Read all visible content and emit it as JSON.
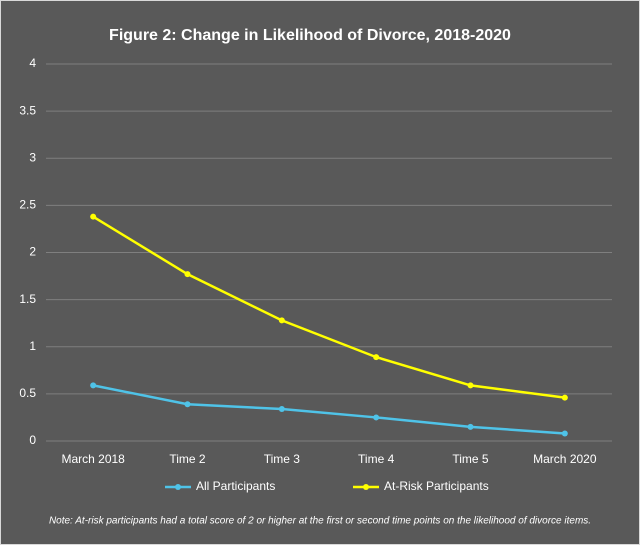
{
  "chart_data": {
    "type": "line",
    "title": "Figure 2: Change in Likelihood of Divorce, 2018-2020",
    "categories": [
      "March 2018",
      "Time 2",
      "Time 3",
      "Time 4",
      "Time 5",
      "March 2020"
    ],
    "series": [
      {
        "name": "All Participants",
        "color": "#4fc3e8",
        "values": [
          0.59,
          0.39,
          0.34,
          0.25,
          0.15,
          0.08
        ]
      },
      {
        "name": "At-Risk Participants",
        "color": "#ffff00",
        "values": [
          2.38,
          1.77,
          1.28,
          0.89,
          0.59,
          0.46
        ]
      }
    ],
    "ylim": [
      0,
      4
    ],
    "yticks": [
      0,
      0.5,
      1,
      1.5,
      2,
      2.5,
      3,
      3.5,
      4
    ],
    "grid": true,
    "legend": "bottom",
    "note": "Note: At-risk participants had a total score of 2 or higher at the first or second time points on the likelihood of divorce items."
  }
}
